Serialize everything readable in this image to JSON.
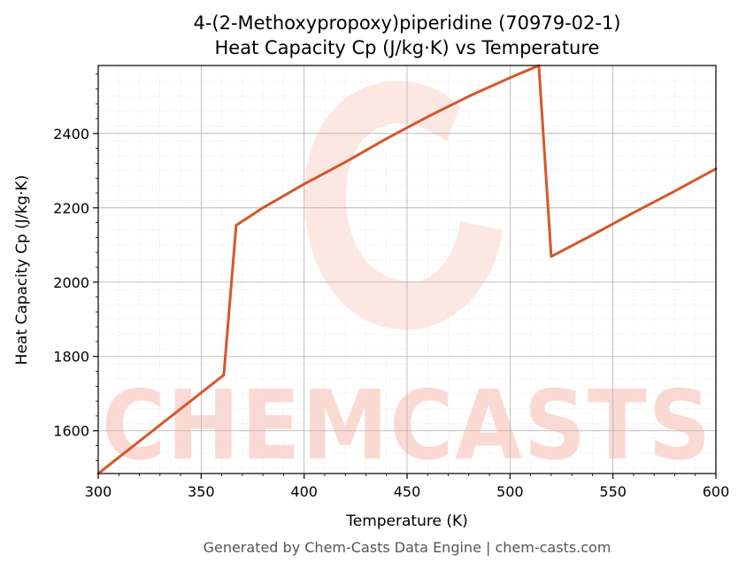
{
  "chart_data": {
    "type": "line",
    "title": "4-(2-Methoxypropoxy)piperidine (70979-02-1)",
    "subtitle": "Heat Capacity Cp (J/kg·K) vs Temperature",
    "xlabel": "Temperature (K)",
    "ylabel": "Heat Capacity Cp (J/kg·K)",
    "xlim": [
      300,
      600
    ],
    "ylim": [
      1485,
      2583
    ],
    "x_ticks": [
      300,
      350,
      400,
      450,
      500,
      550,
      600
    ],
    "y_ticks": [
      1600,
      1800,
      2000,
      2200,
      2400
    ],
    "grid": true,
    "line_color": "#d4572a",
    "series": [
      {
        "x": [
          300,
          361,
          367,
          380,
          400,
          420,
          440,
          460,
          480,
          500,
          514,
          520,
          540,
          560,
          580,
          600
        ],
        "values": [
          1485,
          1750,
          2153,
          2200,
          2264,
          2323,
          2386,
          2445,
          2500,
          2550,
          2583,
          2069,
          2127,
          2187,
          2245,
          2305
        ]
      }
    ]
  },
  "watermark": {
    "text": "CHEMCASTS",
    "color": "#fbd3cc"
  },
  "footer": "Generated by Chem-Casts Data Engine | chem-casts.com"
}
